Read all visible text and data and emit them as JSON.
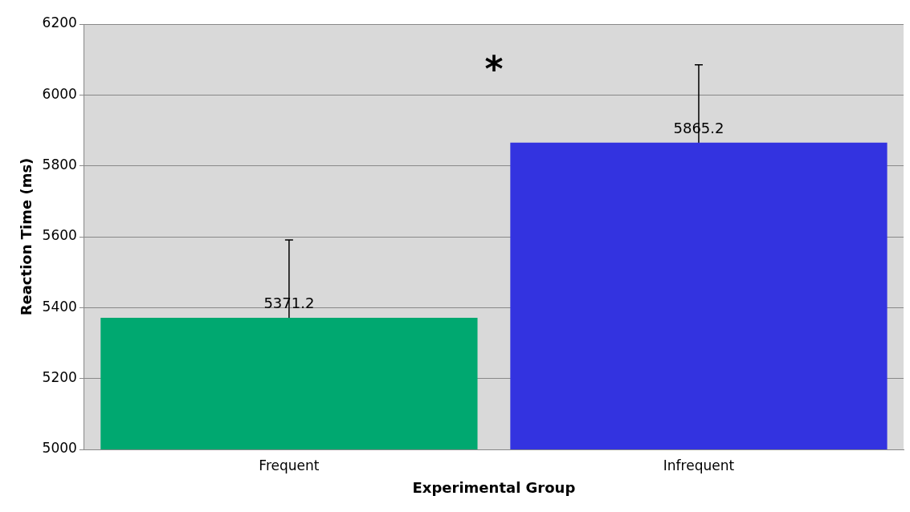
{
  "chart_data": {
    "type": "bar",
    "categories": [
      "Frequent",
      "Infrequent"
    ],
    "values": [
      5371.2,
      5865.2
    ],
    "colors": [
      "#00a870",
      "#3333e0"
    ],
    "errors": [
      220,
      220
    ],
    "data_labels": true,
    "xlabel": "Experimental Group",
    "ylabel": "Reaction Time (ms)",
    "ylim": [
      5000,
      6200
    ],
    "yticks": [
      5000,
      5200,
      5400,
      5600,
      5800,
      6000,
      6200
    ],
    "grid": "y",
    "legend": false,
    "annotations": [
      "*"
    ]
  }
}
